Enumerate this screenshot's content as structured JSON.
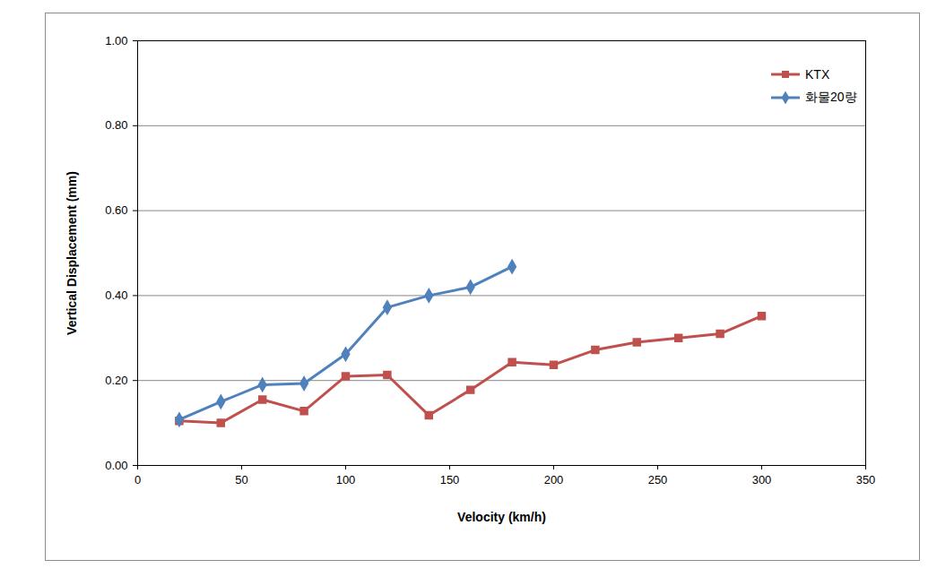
{
  "chart_data": {
    "type": "line",
    "xlabel": "Velocity (km/h)",
    "ylabel": "Vertical Displacement (mm)",
    "xlim": [
      0,
      350
    ],
    "xticks": [
      0,
      50,
      100,
      150,
      200,
      250,
      300,
      350
    ],
    "ylim": [
      0,
      1
    ],
    "yticks": [
      {
        "value": 0,
        "label": "0.00"
      },
      {
        "value": 0.2,
        "label": "0.20"
      },
      {
        "value": 0.4,
        "label": "0.40"
      },
      {
        "value": 0.6,
        "label": "0.60"
      },
      {
        "value": 0.8,
        "label": "0.80"
      },
      {
        "value": 1,
        "label": "1.00"
      }
    ],
    "grid": true,
    "legend": "top-right",
    "series": [
      {
        "name": "KTX",
        "color": "#c0504d",
        "marker": "square",
        "x": [
          20,
          40,
          60,
          80,
          100,
          120,
          140,
          160,
          180,
          200,
          220,
          240,
          260,
          280,
          300
        ],
        "values": [
          0.105,
          0.1,
          0.155,
          0.128,
          0.21,
          0.213,
          0.118,
          0.178,
          0.243,
          0.237,
          0.272,
          0.29,
          0.3,
          0.31,
          0.352
        ]
      },
      {
        "name": "화물20량",
        "color": "#4f81bd",
        "marker": "diamond",
        "x": [
          20,
          40,
          60,
          80,
          100,
          120,
          140,
          160,
          180
        ],
        "values": [
          0.108,
          0.15,
          0.19,
          0.193,
          0.262,
          0.372,
          0.4,
          0.42,
          0.468
        ]
      }
    ]
  }
}
